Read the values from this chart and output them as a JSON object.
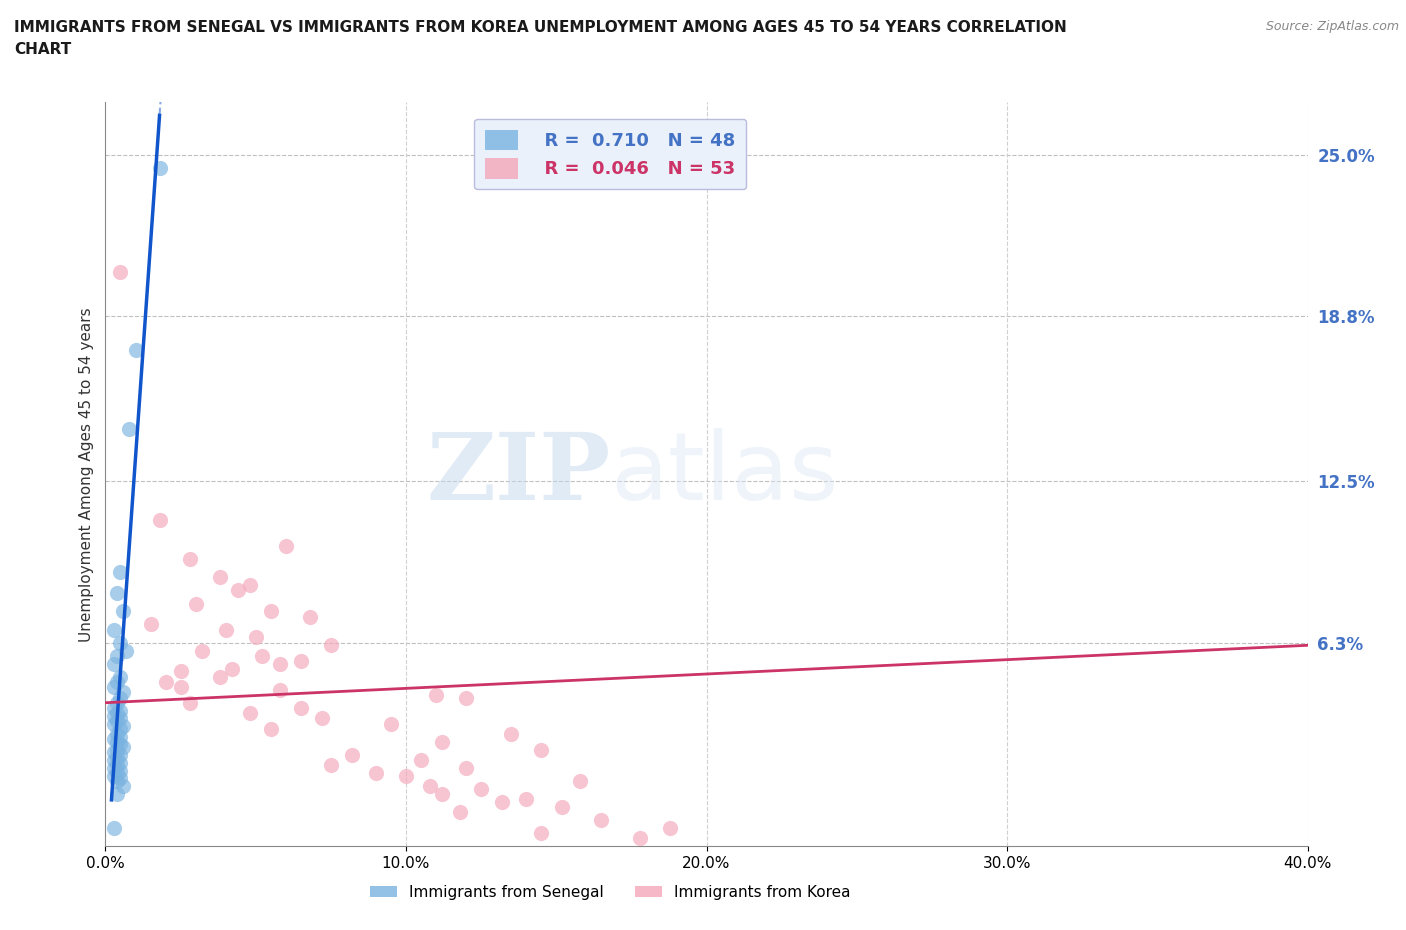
{
  "title_line1": "IMMIGRANTS FROM SENEGAL VS IMMIGRANTS FROM KOREA UNEMPLOYMENT AMONG AGES 45 TO 54 YEARS CORRELATION",
  "title_line2": "CHART",
  "source": "Source: ZipAtlas.com",
  "ylabel": "Unemployment Among Ages 45 to 54 years",
  "xlim": [
    0.0,
    0.4
  ],
  "ylim": [
    -0.015,
    0.27
  ],
  "xticks": [
    0.0,
    0.1,
    0.2,
    0.3,
    0.4
  ],
  "xticklabels": [
    "0.0%",
    "10.0%",
    "20.0%",
    "30.0%",
    "40.0%"
  ],
  "right_yticks": [
    0.063,
    0.125,
    0.188,
    0.25
  ],
  "right_yticklabels": [
    "6.3%",
    "12.5%",
    "18.8%",
    "25.0%"
  ],
  "grid_yticks": [
    0.063,
    0.125,
    0.188,
    0.25
  ],
  "senegal_R": 0.71,
  "senegal_N": 48,
  "korea_R": 0.046,
  "korea_N": 53,
  "senegal_color": "#7ab3e0",
  "korea_color": "#f4a7b9",
  "senegal_line_color": "#1155cc",
  "korea_line_color": "#cc3366",
  "senegal_scatter": [
    [
      0.018,
      0.245
    ],
    [
      0.01,
      0.175
    ],
    [
      0.008,
      0.145
    ],
    [
      0.005,
      0.09
    ],
    [
      0.004,
      0.082
    ],
    [
      0.006,
      0.075
    ],
    [
      0.003,
      0.068
    ],
    [
      0.005,
      0.063
    ],
    [
      0.007,
      0.06
    ],
    [
      0.004,
      0.058
    ],
    [
      0.003,
      0.055
    ],
    [
      0.005,
      0.05
    ],
    [
      0.004,
      0.048
    ],
    [
      0.003,
      0.046
    ],
    [
      0.006,
      0.044
    ],
    [
      0.005,
      0.042
    ],
    [
      0.004,
      0.04
    ],
    [
      0.003,
      0.038
    ],
    [
      0.005,
      0.037
    ],
    [
      0.004,
      0.036
    ],
    [
      0.003,
      0.035
    ],
    [
      0.005,
      0.034
    ],
    [
      0.004,
      0.033
    ],
    [
      0.003,
      0.032
    ],
    [
      0.006,
      0.031
    ],
    [
      0.005,
      0.03
    ],
    [
      0.004,
      0.028
    ],
    [
      0.005,
      0.027
    ],
    [
      0.003,
      0.026
    ],
    [
      0.004,
      0.025
    ],
    [
      0.005,
      0.024
    ],
    [
      0.006,
      0.023
    ],
    [
      0.004,
      0.022
    ],
    [
      0.003,
      0.021
    ],
    [
      0.005,
      0.02
    ],
    [
      0.004,
      0.019
    ],
    [
      0.003,
      0.018
    ],
    [
      0.005,
      0.017
    ],
    [
      0.004,
      0.016
    ],
    [
      0.003,
      0.015
    ],
    [
      0.005,
      0.014
    ],
    [
      0.004,
      0.013
    ],
    [
      0.003,
      0.012
    ],
    [
      0.005,
      0.011
    ],
    [
      0.004,
      0.01
    ],
    [
      0.006,
      0.008
    ],
    [
      0.004,
      0.005
    ],
    [
      0.003,
      -0.008
    ]
  ],
  "korea_scatter": [
    [
      0.005,
      0.205
    ],
    [
      0.018,
      0.11
    ],
    [
      0.06,
      0.1
    ],
    [
      0.028,
      0.095
    ],
    [
      0.038,
      0.088
    ],
    [
      0.048,
      0.085
    ],
    [
      0.044,
      0.083
    ],
    [
      0.03,
      0.078
    ],
    [
      0.055,
      0.075
    ],
    [
      0.068,
      0.073
    ],
    [
      0.015,
      0.07
    ],
    [
      0.04,
      0.068
    ],
    [
      0.05,
      0.065
    ],
    [
      0.075,
      0.062
    ],
    [
      0.032,
      0.06
    ],
    [
      0.052,
      0.058
    ],
    [
      0.065,
      0.056
    ],
    [
      0.058,
      0.055
    ],
    [
      0.042,
      0.053
    ],
    [
      0.025,
      0.052
    ],
    [
      0.038,
      0.05
    ],
    [
      0.02,
      0.048
    ],
    [
      0.025,
      0.046
    ],
    [
      0.058,
      0.045
    ],
    [
      0.11,
      0.043
    ],
    [
      0.12,
      0.042
    ],
    [
      0.028,
      0.04
    ],
    [
      0.065,
      0.038
    ],
    [
      0.048,
      0.036
    ],
    [
      0.072,
      0.034
    ],
    [
      0.095,
      0.032
    ],
    [
      0.055,
      0.03
    ],
    [
      0.135,
      0.028
    ],
    [
      0.112,
      0.025
    ],
    [
      0.145,
      0.022
    ],
    [
      0.082,
      0.02
    ],
    [
      0.105,
      0.018
    ],
    [
      0.075,
      0.016
    ],
    [
      0.12,
      0.015
    ],
    [
      0.09,
      0.013
    ],
    [
      0.1,
      0.012
    ],
    [
      0.158,
      0.01
    ],
    [
      0.108,
      0.008
    ],
    [
      0.125,
      0.007
    ],
    [
      0.112,
      0.005
    ],
    [
      0.14,
      0.003
    ],
    [
      0.132,
      0.002
    ],
    [
      0.152,
      0.0
    ],
    [
      0.118,
      -0.002
    ],
    [
      0.165,
      -0.005
    ],
    [
      0.188,
      -0.008
    ],
    [
      0.145,
      -0.01
    ],
    [
      0.178,
      -0.012
    ]
  ],
  "watermark_zip": "ZIP",
  "watermark_atlas": "atlas",
  "background_color": "#ffffff",
  "legend_box_color": "#eaf1fb"
}
